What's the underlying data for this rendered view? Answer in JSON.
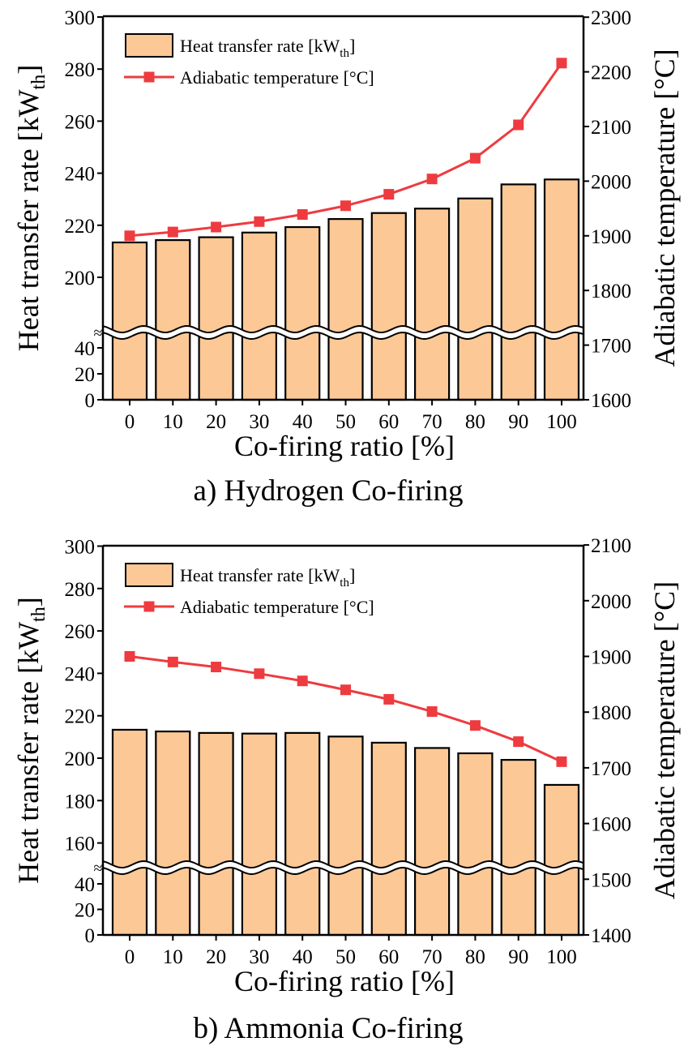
{
  "colors": {
    "bar_fill": "#FCC896",
    "bar_stroke": "#000000",
    "line": "#EE3B3F"
  },
  "chart_data": [
    {
      "type": "bar+line",
      "caption": "a) Hydrogen Co-firing",
      "xlabel": "Co-firing ratio [%]",
      "ylabel_left": "Heat transfer rate [kW",
      "ylabel_left_sub": "th",
      "ylabel_left_end": "]",
      "ylabel_right": "Adiabatic temperature [°C]",
      "categories": [
        "0",
        "10",
        "20",
        "30",
        "40",
        "50",
        "60",
        "70",
        "80",
        "90",
        "100"
      ],
      "left_axis": {
        "ticks": [
          0,
          20,
          40,
          200,
          220,
          240,
          260,
          280,
          300
        ],
        "broken": true,
        "break_between": [
          40,
          200
        ]
      },
      "right_axis": {
        "ticks": [
          1600,
          1700,
          1800,
          1900,
          2000,
          2100,
          2200,
          2300
        ],
        "range": [
          1600,
          2300
        ]
      },
      "legend": {
        "position": "top-left",
        "bar_label": "Heat transfer rate [kW",
        "bar_label_sub": "th",
        "bar_label_end": "]",
        "line_label": "Adiabatic temperature [°C]"
      },
      "series": [
        {
          "name": "Heat transfer rate [kWth]",
          "type": "bar",
          "axis": "left",
          "values": [
            213.4,
            214.3,
            215.4,
            217.2,
            219.3,
            222.4,
            224.7,
            226.4,
            230.3,
            235.7,
            237.6
          ]
        },
        {
          "name": "Adiabatic temperature [°C]",
          "type": "line",
          "axis": "right",
          "values": [
            1900,
            1907,
            1916,
            1926,
            1939,
            1955,
            1976,
            2004,
            2042,
            2103,
            2216
          ]
        }
      ]
    },
    {
      "type": "bar+line",
      "caption": "b) Ammonia Co-firing",
      "xlabel": "Co-firing ratio [%]",
      "ylabel_left": "Heat transfer rate [kW",
      "ylabel_left_sub": "th",
      "ylabel_left_end": "]",
      "ylabel_right": "Adiabatic temperature [°C]",
      "categories": [
        "0",
        "10",
        "20",
        "30",
        "40",
        "50",
        "60",
        "70",
        "80",
        "90",
        "100"
      ],
      "left_axis": {
        "ticks": [
          0,
          20,
          40,
          160,
          180,
          200,
          220,
          240,
          260,
          280,
          300
        ],
        "broken": true,
        "break_between": [
          40,
          160
        ]
      },
      "right_axis": {
        "ticks": [
          1400,
          1500,
          1600,
          1700,
          1800,
          1900,
          2000,
          2100
        ],
        "range": [
          1400,
          2100
        ]
      },
      "legend": {
        "position": "top-left",
        "bar_label": "Heat transfer rate [kW",
        "bar_label_sub": "th",
        "bar_label_end": "]",
        "line_label": "Adiabatic temperature [°C]"
      },
      "series": [
        {
          "name": "Heat transfer rate [kWth]",
          "type": "bar",
          "axis": "left",
          "values": [
            213.4,
            212.6,
            211.9,
            211.6,
            211.9,
            210.2,
            207.3,
            204.8,
            202.3,
            199.2,
            187.4
          ]
        },
        {
          "name": "Adiabatic temperature [°C]",
          "type": "line",
          "axis": "right",
          "values": [
            1900,
            1890,
            1881,
            1869,
            1856,
            1840,
            1823,
            1801,
            1776,
            1747,
            1711
          ]
        }
      ]
    }
  ]
}
